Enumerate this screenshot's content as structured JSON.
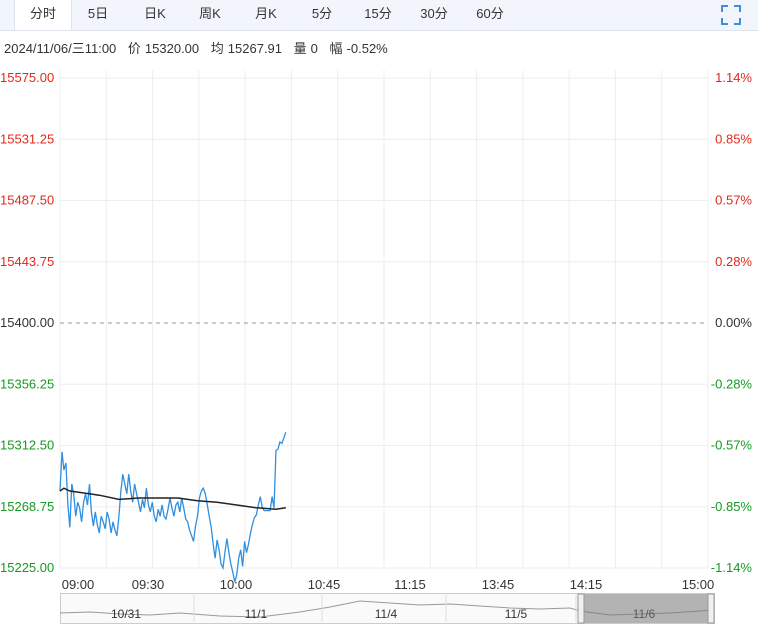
{
  "tabs": [
    {
      "label": "分时",
      "active": true
    },
    {
      "label": "5日"
    },
    {
      "label": "日K"
    },
    {
      "label": "周K"
    },
    {
      "label": "月K"
    },
    {
      "label": "5分"
    },
    {
      "label": "15分"
    },
    {
      "label": "30分"
    },
    {
      "label": "60分"
    }
  ],
  "info": {
    "datetime": "2024/11/06/三11:00",
    "price_label": "价",
    "price": "15320.00",
    "avg_label": "均",
    "avg": "15267.91",
    "volume_label": "量",
    "volume": "0",
    "change_label": "幅",
    "change": "-0.52%"
  },
  "colors": {
    "up": "#e0291b",
    "down": "#159a21",
    "price_line": "#2f8fe0",
    "avg_line": "#222222",
    "grid": "#eeeeee"
  },
  "chart_data": {
    "type": "line",
    "base_price": 15400.0,
    "y_ticks": [
      "15575.00",
      "15531.25",
      "15487.50",
      "15443.75",
      "15400.00",
      "15356.25",
      "15312.50",
      "15268.75",
      "15225.00"
    ],
    "y_pct_ticks": [
      "1.14%",
      "0.85%",
      "0.57%",
      "0.28%",
      "0.00%",
      "-0.28%",
      "-0.57%",
      "-0.85%",
      "-1.14%"
    ],
    "ylim": [
      15225.0,
      15575.0
    ],
    "x_ticks": [
      "09:00",
      "09:30",
      "10:00",
      "10:45",
      "11:15",
      "13:45",
      "14:15",
      "15:00"
    ],
    "x_range_minutes": 330,
    "series": [
      {
        "kind": "price",
        "points": [
          [
            0,
            15280
          ],
          [
            1,
            15308
          ],
          [
            2,
            15295
          ],
          [
            3,
            15300
          ],
          [
            4,
            15270
          ],
          [
            5,
            15254
          ],
          [
            6,
            15285
          ],
          [
            7,
            15278
          ],
          [
            8,
            15262
          ],
          [
            9,
            15272
          ],
          [
            10,
            15268
          ],
          [
            11,
            15258
          ],
          [
            12,
            15272
          ],
          [
            13,
            15278
          ],
          [
            14,
            15270
          ],
          [
            15,
            15285
          ],
          [
            16,
            15265
          ],
          [
            17,
            15255
          ],
          [
            18,
            15265
          ],
          [
            19,
            15256
          ],
          [
            20,
            15250
          ],
          [
            21,
            15262
          ],
          [
            22,
            15258
          ],
          [
            23,
            15253
          ],
          [
            24,
            15265
          ],
          [
            25,
            15260
          ],
          [
            26,
            15250
          ],
          [
            27,
            15258
          ],
          [
            28,
            15252
          ],
          [
            29,
            15248
          ],
          [
            30,
            15262
          ],
          [
            31,
            15280
          ],
          [
            32,
            15292
          ],
          [
            33,
            15285
          ],
          [
            34,
            15278
          ],
          [
            35,
            15292
          ],
          [
            36,
            15280
          ],
          [
            37,
            15272
          ],
          [
            38,
            15285
          ],
          [
            39,
            15278
          ],
          [
            40,
            15272
          ],
          [
            41,
            15265
          ],
          [
            42,
            15274
          ],
          [
            43,
            15268
          ],
          [
            44,
            15282
          ],
          [
            45,
            15270
          ],
          [
            46,
            15265
          ],
          [
            47,
            15272
          ],
          [
            48,
            15262
          ],
          [
            49,
            15258
          ],
          [
            50,
            15267
          ],
          [
            51,
            15262
          ],
          [
            52,
            15270
          ],
          [
            53,
            15262
          ],
          [
            54,
            15260
          ],
          [
            55,
            15267
          ],
          [
            56,
            15275
          ],
          [
            57,
            15268
          ],
          [
            58,
            15262
          ],
          [
            59,
            15270
          ],
          [
            60,
            15272
          ],
          [
            61,
            15265
          ],
          [
            62,
            15275
          ],
          [
            63,
            15268
          ],
          [
            64,
            15260
          ],
          [
            65,
            15258
          ],
          [
            66,
            15252
          ],
          [
            67,
            15248
          ],
          [
            68,
            15244
          ],
          [
            69,
            15255
          ],
          [
            70,
            15262
          ],
          [
            71,
            15275
          ],
          [
            72,
            15280
          ],
          [
            73,
            15282
          ],
          [
            74,
            15278
          ],
          [
            75,
            15270
          ],
          [
            76,
            15262
          ],
          [
            77,
            15254
          ],
          [
            78,
            15242
          ],
          [
            79,
            15232
          ],
          [
            80,
            15245
          ],
          [
            81,
            15238
          ],
          [
            82,
            15228
          ],
          [
            83,
            15225
          ],
          [
            84,
            15236
          ],
          [
            85,
            15246
          ],
          [
            86,
            15236
          ],
          [
            87,
            15228
          ],
          [
            88,
            15222
          ],
          [
            89,
            15215
          ],
          [
            90,
            15220
          ],
          [
            91,
            15232
          ],
          [
            92,
            15238
          ],
          [
            93,
            15226
          ],
          [
            94,
            15244
          ],
          [
            95,
            15236
          ],
          [
            96,
            15242
          ],
          [
            97,
            15250
          ],
          [
            98,
            15256
          ],
          [
            99,
            15261
          ],
          [
            100,
            15263
          ],
          [
            101,
            15270
          ],
          [
            102,
            15276
          ],
          [
            103,
            15268
          ],
          [
            104,
            15266
          ],
          [
            105,
            15266
          ],
          [
            106,
            15266
          ],
          [
            107,
            15266
          ],
          [
            108,
            15276
          ],
          [
            109,
            15268
          ],
          [
            110,
            15309
          ],
          [
            111,
            15310
          ],
          [
            112,
            15315
          ],
          [
            113,
            15314
          ],
          [
            114,
            15318
          ],
          [
            115,
            15322
          ]
        ]
      },
      {
        "kind": "average",
        "points": [
          [
            0,
            15280
          ],
          [
            2,
            15282
          ],
          [
            5,
            15280
          ],
          [
            10,
            15279
          ],
          [
            20,
            15277
          ],
          [
            30,
            15274
          ],
          [
            40,
            15275
          ],
          [
            50,
            15275
          ],
          [
            60,
            15275
          ],
          [
            70,
            15273
          ],
          [
            80,
            15272
          ],
          [
            90,
            15270
          ],
          [
            100,
            15268
          ],
          [
            110,
            15267
          ],
          [
            115,
            15268
          ]
        ]
      }
    ]
  },
  "navigator": {
    "dates": [
      "10/31",
      "11/1",
      "11/4",
      "11/5",
      "11/6"
    ]
  }
}
